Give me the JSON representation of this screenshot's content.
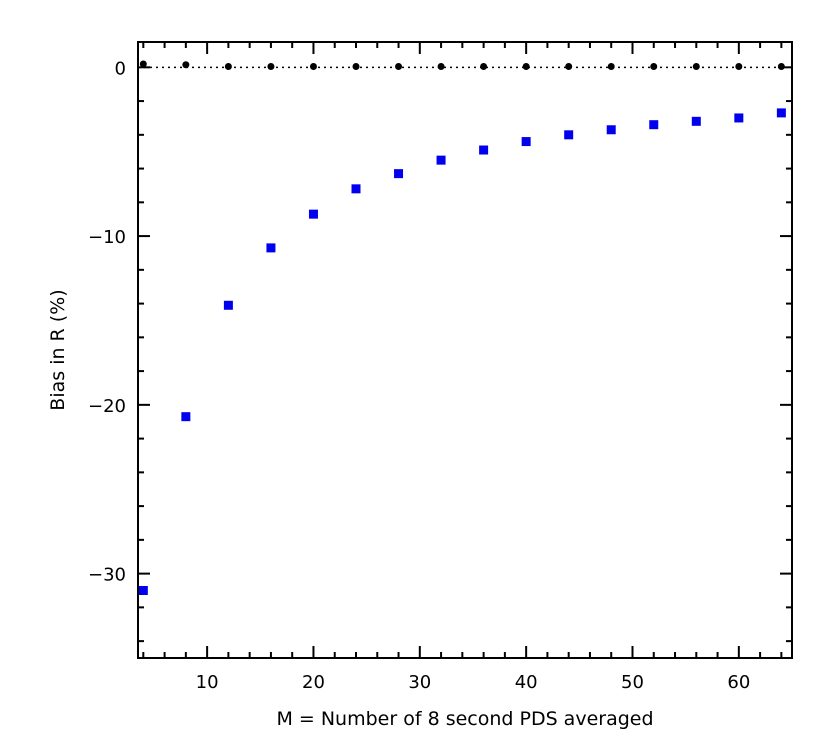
{
  "chart_data": {
    "type": "scatter",
    "title": "",
    "xlabel": "M = Number of 8 second PDS averaged",
    "ylabel": "Bias in R (%)",
    "xlim": [
      3.5,
      65
    ],
    "ylim": [
      -35,
      1.5
    ],
    "xticks": [
      10,
      20,
      30,
      40,
      50,
      60
    ],
    "yticks": [
      0,
      -10,
      -20,
      -30
    ],
    "x_minor_step": 2,
    "y_minor_step": 2,
    "grid": false,
    "legend": "none",
    "reference_line": {
      "y": 0,
      "style": "dotted",
      "color": "#000000"
    },
    "series": [
      {
        "marker": "square",
        "color": "#0000ee",
        "x": [
          4,
          8,
          12,
          16,
          20,
          24,
          28,
          32,
          36,
          40,
          44,
          48,
          52,
          56,
          60,
          64
        ],
        "y": [
          -31.0,
          -20.7,
          -14.1,
          -10.7,
          -8.7,
          -7.2,
          -6.3,
          -5.5,
          -4.9,
          -4.4,
          -4.0,
          -3.7,
          -3.4,
          -3.2,
          -3.0,
          -2.7
        ]
      },
      {
        "marker": "circle",
        "color": "#000000",
        "x": [
          4,
          8,
          12,
          16,
          20,
          24,
          28,
          32,
          36,
          40,
          44,
          48,
          52,
          56,
          60,
          64
        ],
        "y": [
          0.2,
          0.15,
          0.05,
          0.05,
          0.05,
          0.05,
          0.05,
          0.05,
          0.05,
          0.05,
          0.05,
          0.05,
          0.05,
          0.05,
          0.05,
          0.05
        ]
      }
    ]
  }
}
